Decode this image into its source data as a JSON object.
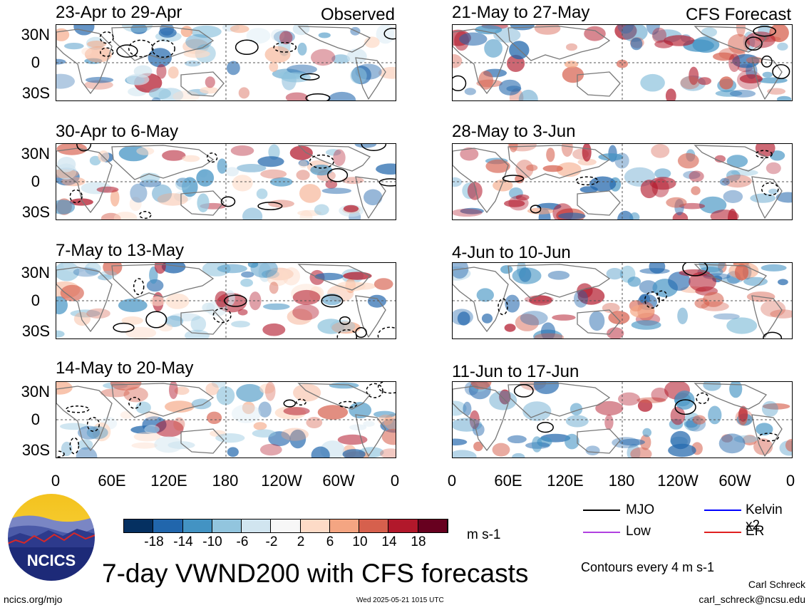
{
  "header": {
    "observed_label": "Observed",
    "forecast_label": "CFS Forecast"
  },
  "panels": {
    "observed": [
      {
        "title": "23-Apr to 29-Apr"
      },
      {
        "title": "30-Apr to 6-May"
      },
      {
        "title": "7-May to 13-May"
      },
      {
        "title": "14-May to 20-May"
      }
    ],
    "forecast": [
      {
        "title": "21-May to 27-May"
      },
      {
        "title": "28-May to 3-Jun"
      },
      {
        "title": "4-Jun to 10-Jun"
      },
      {
        "title": "11-Jun to 17-Jun"
      }
    ]
  },
  "axes": {
    "lat_ticks": [
      "30N",
      "0",
      "30S"
    ],
    "lon_ticks": [
      "0",
      "60E",
      "120E",
      "180",
      "120W",
      "60W",
      "0"
    ]
  },
  "colorbar": {
    "labels": [
      "-18",
      "-14",
      "-10",
      "-6",
      "-2",
      "2",
      "6",
      "10",
      "14",
      "18"
    ],
    "units": "m s-1",
    "colors": [
      "#053061",
      "#2166ac",
      "#4393c3",
      "#92c5de",
      "#d1e5f0",
      "#f7f7f7",
      "#fddbc7",
      "#f4a582",
      "#d6604d",
      "#b2182b",
      "#67001f"
    ]
  },
  "legend": {
    "items": [
      {
        "label": "MJO",
        "color": "#000000"
      },
      {
        "label": "Kelvin x2",
        "color": "#0000ff"
      },
      {
        "label": "Low",
        "color": "#b040e0"
      },
      {
        "label": "ER",
        "color": "#e02020"
      }
    ],
    "contours_note": "Contours every 4 m s-1"
  },
  "footer": {
    "main_title": "7-day VWND200 with CFS forecasts",
    "author": "Carl Schreck",
    "email": "carl_schreck@ncsu.edu",
    "website": "ncics.org/mjo",
    "timestamp": "Wed 2025-05-21 1015 UTC",
    "logo_text": "NCICS"
  },
  "chart_data": {
    "type": "heatmap",
    "variable": "VWND200",
    "units": "m s-1",
    "color_levels": [
      -18,
      -14,
      -10,
      -6,
      -2,
      2,
      6,
      10,
      14,
      18
    ],
    "lat_ticks": [
      "30N",
      "0",
      "30S"
    ],
    "lon_ticks": [
      "0",
      "60E",
      "120E",
      "180",
      "120W",
      "60W",
      "0"
    ],
    "panels": [
      {
        "title": "23-Apr to 29-Apr",
        "source": "Observed"
      },
      {
        "title": "30-Apr to 6-May",
        "source": "Observed"
      },
      {
        "title": "7-May to 13-May",
        "source": "Observed"
      },
      {
        "title": "14-May to 20-May",
        "source": "Observed"
      },
      {
        "title": "21-May to 27-May",
        "source": "CFS Forecast"
      },
      {
        "title": "28-May to 3-Jun",
        "source": "CFS Forecast"
      },
      {
        "title": "4-Jun to 10-Jun",
        "source": "CFS Forecast"
      },
      {
        "title": "11-Jun to 17-Jun",
        "source": "CFS Forecast"
      }
    ]
  }
}
